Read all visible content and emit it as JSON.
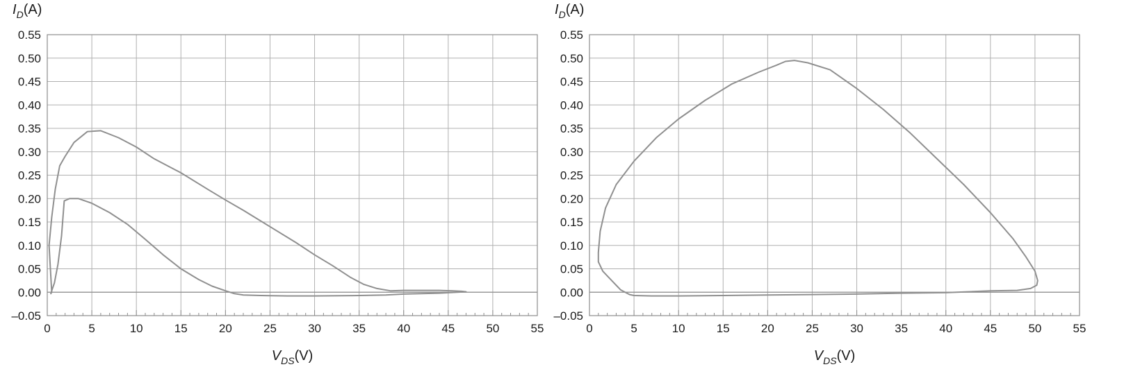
{
  "chart_data": [
    {
      "type": "line",
      "ylabel": {
        "main": "I",
        "sub": "D",
        "unit": "(A)"
      },
      "xlabel": {
        "main": "V",
        "sub": "DS",
        "unit": "(V)"
      },
      "xlim": [
        0,
        55
      ],
      "ylim": [
        -0.05,
        0.55
      ],
      "x_ticks": [
        "0",
        "5",
        "10",
        "15",
        "20",
        "25",
        "30",
        "35",
        "40",
        "45",
        "50",
        "55"
      ],
      "y_ticks": [
        "0.55",
        "0.50",
        "0.45",
        "0.40",
        "0.35",
        "0.30",
        "0.25",
        "0.20",
        "0.15",
        "0.10",
        "0.05",
        "0.00",
        "–0.05"
      ],
      "grid": true,
      "series": [
        {
          "x": [
            0.5,
            0.2,
            0.5,
            0.9,
            1.4,
            2.0,
            3.0,
            4.5,
            6.0,
            8.0,
            10.0,
            12.0,
            15.0,
            18.0,
            20.0,
            22.0,
            25.0,
            28.0,
            30.0,
            32.0,
            34.0,
            35.5,
            37.0,
            38.5,
            40.0,
            42.0,
            44.0,
            45.5,
            46.5,
            47.0,
            46.0,
            44.0,
            42.0,
            40.0,
            38.0,
            35.0,
            30.0,
            27.0,
            24.0,
            22.0,
            21.0,
            20.0,
            18.5,
            17.0,
            15.0,
            13.0,
            11.0,
            9.0,
            7.0,
            5.0,
            3.5,
            2.5,
            1.9,
            1.8,
            1.6,
            1.2,
            0.8,
            0.5,
            0.4,
            0.5
          ],
          "y": [
            0.0,
            0.1,
            0.16,
            0.22,
            0.27,
            0.29,
            0.32,
            0.343,
            0.345,
            0.33,
            0.31,
            0.285,
            0.255,
            0.22,
            0.197,
            0.175,
            0.14,
            0.105,
            0.08,
            0.057,
            0.032,
            0.017,
            0.008,
            0.003,
            0.004,
            0.004,
            0.004,
            0.003,
            0.002,
            0.001,
            0.0,
            -0.002,
            -0.003,
            -0.004,
            -0.006,
            -0.007,
            -0.008,
            -0.008,
            -0.007,
            -0.006,
            -0.003,
            0.003,
            0.013,
            0.027,
            0.05,
            0.08,
            0.113,
            0.145,
            0.17,
            0.19,
            0.2,
            0.2,
            0.195,
            0.17,
            0.12,
            0.06,
            0.02,
            0.003,
            -0.003,
            0.0
          ]
        }
      ]
    },
    {
      "type": "line",
      "ylabel": {
        "main": "I",
        "sub": "D",
        "unit": "(A)"
      },
      "xlabel": {
        "main": "V",
        "sub": "DS",
        "unit": "(V)"
      },
      "xlim": [
        0,
        55
      ],
      "ylim": [
        -0.05,
        0.55
      ],
      "x_ticks": [
        "0",
        "5",
        "10",
        "15",
        "20",
        "25",
        "30",
        "35",
        "40",
        "45",
        "50",
        "55"
      ],
      "y_ticks": [
        "0.55",
        "0.50",
        "0.45",
        "0.40",
        "0.35",
        "0.30",
        "0.25",
        "0.20",
        "0.15",
        "0.10",
        "0.05",
        "0.00",
        "–0.05"
      ],
      "grid": true,
      "series": [
        {
          "x": [
            4.5,
            3.5,
            2.5,
            1.5,
            1.0,
            1.0,
            1.2,
            1.8,
            3.0,
            5.0,
            7.5,
            10.0,
            13.0,
            16.0,
            19.0,
            21.0,
            22.0,
            23.0,
            24.5,
            27.0,
            30.0,
            33.0,
            36.0,
            39.0,
            42.0,
            45.0,
            47.5,
            49.0,
            50.0,
            50.3,
            50.2,
            49.5,
            48.0,
            45.0,
            40.0,
            35.0,
            30.0,
            25.0,
            20.0,
            15.0,
            10.0,
            7.0,
            5.0,
            4.5
          ],
          "y": [
            -0.005,
            0.005,
            0.025,
            0.045,
            0.065,
            0.085,
            0.13,
            0.18,
            0.23,
            0.28,
            0.33,
            0.37,
            0.41,
            0.445,
            0.47,
            0.485,
            0.493,
            0.495,
            0.49,
            0.475,
            0.435,
            0.39,
            0.34,
            0.285,
            0.23,
            0.17,
            0.115,
            0.075,
            0.045,
            0.025,
            0.015,
            0.008,
            0.004,
            0.003,
            -0.001,
            -0.002,
            -0.004,
            -0.005,
            -0.006,
            -0.007,
            -0.008,
            -0.008,
            -0.007,
            -0.005
          ]
        }
      ]
    }
  ]
}
